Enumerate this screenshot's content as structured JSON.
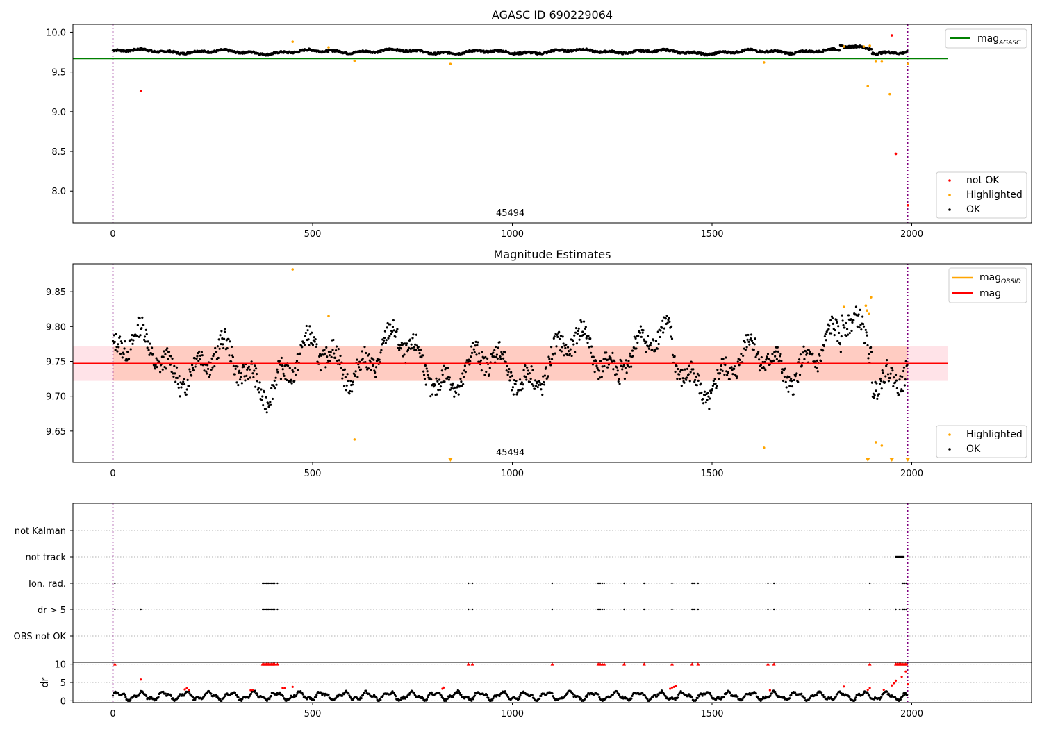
{
  "chart_data": [
    {
      "type": "scatter",
      "title": "AGASC ID 690229064",
      "xlim": [
        -100,
        2300
      ],
      "ylim": [
        7.6,
        10.1
      ],
      "xticks": [
        0,
        500,
        1000,
        1500,
        2000
      ],
      "yticks": [
        8.0,
        8.5,
        9.0,
        9.5,
        10.0
      ],
      "ytick_labels": [
        "8.0",
        "8.5",
        "9.0",
        "9.5",
        "10.0"
      ],
      "obsid_label": "45494",
      "obsid_label_x": 995,
      "vlines_x": [
        0,
        1990
      ],
      "reference_line": {
        "name": "mag$_{AGASC}$",
        "label_main": "mag",
        "label_sub": "AGASC",
        "y": 9.67,
        "x_range": [
          -100,
          2090
        ],
        "color": "#008000"
      },
      "ok_trend": {
        "base": 9.755,
        "points": 1990
      },
      "not_ok_points": [
        [
          70,
          9.26
        ],
        [
          1950,
          9.96
        ],
        [
          1960,
          8.47
        ],
        [
          1990,
          7.82
        ]
      ],
      "highlighted_points": [
        [
          450,
          9.88
        ],
        [
          540,
          9.81
        ],
        [
          605,
          9.64
        ],
        [
          845,
          9.6
        ],
        [
          1630,
          9.62
        ],
        [
          1830,
          9.82
        ],
        [
          1880,
          9.82
        ],
        [
          1890,
          9.32
        ],
        [
          1895,
          9.83
        ],
        [
          1910,
          9.63
        ],
        [
          1925,
          9.63
        ],
        [
          1945,
          9.22
        ],
        [
          1990,
          9.6
        ]
      ],
      "legend": {
        "line": [
          "mag$_{AGASC}$"
        ],
        "points": [
          {
            "label": "not OK",
            "color": "#ff0000"
          },
          {
            "label": "Highlighted",
            "color": "#ffa500"
          },
          {
            "label": "OK",
            "color": "#000000"
          }
        ]
      }
    },
    {
      "type": "scatter",
      "title": "Magnitude Estimates",
      "xlim": [
        -100,
        2300
      ],
      "ylim": [
        9.605,
        9.89
      ],
      "xticks": [
        0,
        500,
        1000,
        1500,
        2000
      ],
      "yticks": [
        9.65,
        9.7,
        9.75,
        9.8,
        9.85
      ],
      "ytick_labels": [
        "9.65",
        "9.70",
        "9.75",
        "9.80",
        "9.85"
      ],
      "obsid_label": "45494",
      "obsid_label_x": 995,
      "vlines_x": [
        0,
        1990
      ],
      "mag": {
        "y": 9.747,
        "x_range": [
          -100,
          2090
        ],
        "color": "#ff0000"
      },
      "mag_band": {
        "y": [
          9.722,
          9.772
        ],
        "x_range": [
          -100,
          2090
        ],
        "color": "#ffc0cb"
      },
      "mag_obsid_band": {
        "y": [
          9.722,
          9.772
        ],
        "x_range": [
          0,
          1990
        ],
        "color": "#ffa07a"
      },
      "ok_points": {
        "count": 1990
      },
      "highlighted_points": [
        [
          450,
          9.882
        ],
        [
          540,
          9.815
        ],
        [
          605,
          9.638
        ],
        [
          1630,
          9.626
        ],
        [
          1830,
          9.828
        ],
        [
          1885,
          9.83
        ],
        [
          1888,
          9.823
        ],
        [
          1893,
          9.818
        ],
        [
          1898,
          9.842
        ],
        [
          1910,
          9.634
        ],
        [
          1925,
          9.629
        ]
      ],
      "highlighted_below_range_x": [
        845,
        1890,
        1950,
        1990
      ],
      "legend": {
        "line": [
          {
            "label": "mag$_{OBSID}$",
            "label_main": "mag",
            "label_sub": "OBSID",
            "color": "#ffa500"
          },
          {
            "label": "mag",
            "color": "#ff0000"
          }
        ],
        "points": [
          {
            "label": "Highlighted",
            "color": "#ffa500"
          },
          {
            "label": "OK",
            "color": "#000000"
          }
        ]
      }
    },
    {
      "type": "scatter",
      "title": "",
      "xlim": [
        -100,
        2300
      ],
      "categories": [
        "not Kalman",
        "not track",
        "Ion. rad.",
        "dr > 5",
        "OBS not OK"
      ],
      "vlines_x": [
        0,
        1990
      ],
      "flags": {
        "not Kalman": [],
        "not track": [
          1960,
          1962,
          1964,
          1966,
          1968,
          1970,
          1972,
          1974,
          1976,
          1978,
          1980
        ],
        "Ion. rad.": [
          5,
          375,
          378,
          381,
          384,
          387,
          390,
          393,
          396,
          399,
          402,
          405,
          412,
          890,
          900,
          1100,
          1215,
          1220,
          1225,
          1230,
          1280,
          1330,
          1400,
          1450,
          1455,
          1465,
          1640,
          1655,
          1895,
          1978,
          1982,
          1986
        ],
        "dr > 5": [
          5,
          70,
          375,
          378,
          381,
          384,
          387,
          390,
          393,
          396,
          399,
          402,
          405,
          412,
          890,
          900,
          1100,
          1215,
          1220,
          1225,
          1230,
          1280,
          1330,
          1400,
          1450,
          1455,
          1465,
          1640,
          1655,
          1895,
          1960,
          1970,
          1978,
          1982,
          1986
        ],
        "OBS not OK": []
      }
    },
    {
      "type": "scatter",
      "title": "",
      "ylabel": "dr",
      "xlim": [
        -100,
        2300
      ],
      "ylim": [
        -0.5,
        10.5
      ],
      "xticks": [
        0,
        500,
        1000,
        1500,
        2000
      ],
      "yticks": [
        0,
        5,
        10
      ],
      "ytick_labels": [
        "0",
        "5",
        "10"
      ],
      "vlines_x": [
        0,
        1990
      ],
      "clipped_at": 10,
      "clipped_x": [
        5,
        375,
        378,
        381,
        384,
        387,
        390,
        393,
        396,
        399,
        402,
        405,
        412,
        890,
        900,
        1100,
        1215,
        1220,
        1225,
        1230,
        1280,
        1330,
        1400,
        1450,
        1465,
        1640,
        1655,
        1895,
        1960,
        1963,
        1966,
        1969,
        1972,
        1975,
        1978,
        1981,
        1984,
        1987
      ],
      "red_points": [
        [
          70,
          5.8
        ],
        [
          180,
          3.1
        ],
        [
          185,
          3.4
        ],
        [
          190,
          3.0
        ],
        [
          345,
          2.9
        ],
        [
          350,
          3.0
        ],
        [
          425,
          3.5
        ],
        [
          430,
          3.4
        ],
        [
          450,
          3.8
        ],
        [
          825,
          3.3
        ],
        [
          828,
          3.6
        ],
        [
          1395,
          3.3
        ],
        [
          1400,
          3.6
        ],
        [
          1405,
          3.8
        ],
        [
          1410,
          4.0
        ],
        [
          1645,
          2.9
        ],
        [
          1830,
          3.9
        ],
        [
          1890,
          3.0
        ],
        [
          1895,
          3.5
        ],
        [
          1930,
          3.0
        ],
        [
          1950,
          4.2
        ],
        [
          1955,
          4.8
        ],
        [
          1960,
          5.5
        ],
        [
          1975,
          6.6
        ],
        [
          1985,
          8.0
        ],
        [
          1990,
          4.5
        ]
      ]
    }
  ]
}
